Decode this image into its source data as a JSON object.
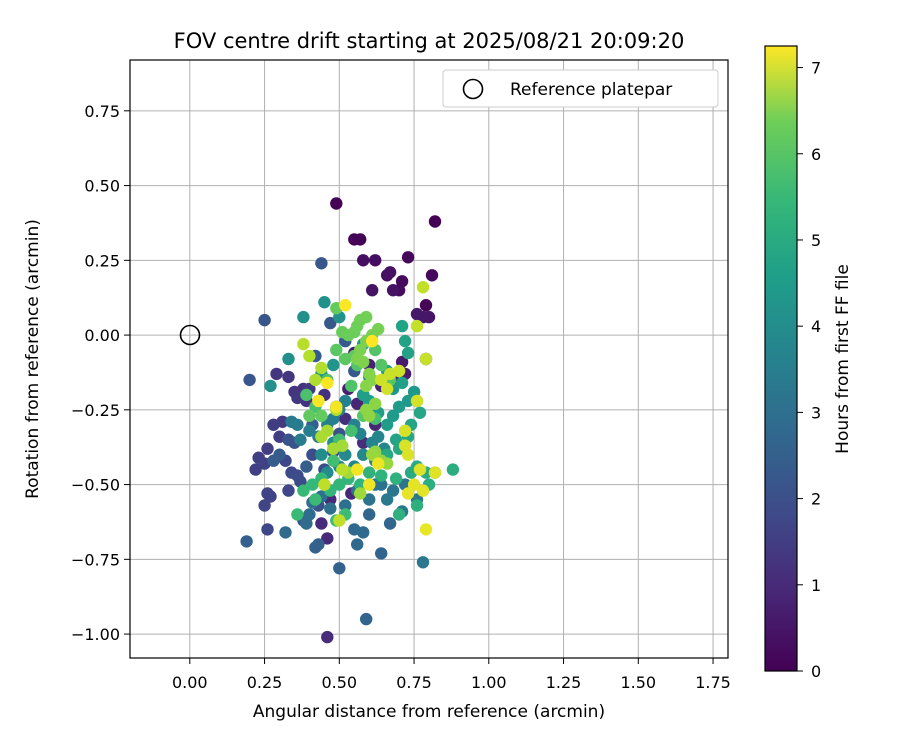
{
  "chart_data": {
    "type": "scatter",
    "title": "FOV centre drift starting at 2025/08/21 20:09:20",
    "xlabel": "Angular distance from reference (arcmin)",
    "ylabel": "Rotation from reference (arcmin)",
    "xlim": [
      -0.2,
      1.8
    ],
    "ylim": [
      -1.08,
      0.92
    ],
    "x_ticks": [
      "0.00",
      "0.25",
      "0.50",
      "0.75",
      "1.00",
      "1.25",
      "1.50",
      "1.75"
    ],
    "y_ticks": [
      "0.75",
      "0.50",
      "0.25",
      "0.00",
      "−0.25",
      "−0.50",
      "−0.75",
      "−1.00"
    ],
    "grid": true,
    "legend": {
      "position": "top-right",
      "entries": [
        "Reference platepar"
      ]
    },
    "reference_point": {
      "x": 0.0,
      "y": 0.0,
      "label": "Reference platepar"
    },
    "colorbar": {
      "label": "Hours from first FF file",
      "colormap": "viridis",
      "range": [
        0,
        7.25
      ],
      "ticks": [
        "0",
        "1",
        "2",
        "3",
        "4",
        "5",
        "6",
        "7"
      ]
    },
    "point_color_scale": {
      "low": "#440154",
      "high": "#fde725"
    },
    "series": [
      {
        "values": [
          [
            0.82,
            0.38
          ],
          [
            0.49,
            0.44
          ],
          [
            0.57,
            0.32
          ],
          [
            0.55,
            0.32
          ],
          [
            0.79,
            0.1
          ],
          [
            0.81,
            0.2
          ],
          [
            0.73,
            0.26
          ],
          [
            0.71,
            0.18
          ],
          [
            0.7,
            0.15
          ],
          [
            0.62,
            0.25
          ],
          [
            0.58,
            0.25
          ],
          [
            0.66,
            0.2
          ],
          [
            0.67,
            0.21
          ],
          [
            0.68,
            0.15
          ],
          [
            0.61,
            0.15
          ],
          [
            0.8,
            0.06
          ],
          [
            0.78,
            0.06
          ],
          [
            0.76,
            0.07
          ],
          [
            0.79,
            -0.08
          ],
          [
            0.71,
            -0.09
          ],
          [
            0.72,
            -0.13
          ],
          [
            0.68,
            -0.15
          ],
          [
            0.55,
            -0.06
          ],
          [
            0.53,
            -0.18
          ],
          [
            0.6,
            -0.1
          ],
          [
            0.64,
            -0.17
          ],
          [
            0.58,
            -0.2
          ],
          [
            0.56,
            -0.23
          ],
          [
            0.62,
            -0.3
          ],
          [
            0.47,
            -0.55
          ],
          [
            0.54,
            -0.53
          ],
          [
            0.44,
            -0.63
          ],
          [
            0.46,
            -0.68
          ],
          [
            0.46,
            -1.01
          ],
          [
            0.58,
            -0.36
          ],
          [
            0.52,
            -0.28
          ],
          [
            0.49,
            -0.24
          ],
          [
            0.45,
            -0.2
          ],
          [
            0.38,
            -0.18
          ],
          [
            0.39,
            -0.22
          ],
          [
            0.35,
            -0.19
          ],
          [
            0.33,
            -0.14
          ],
          [
            0.29,
            -0.13
          ],
          [
            0.36,
            -0.21
          ],
          [
            0.4,
            -0.18
          ],
          [
            0.31,
            -0.29
          ],
          [
            0.3,
            -0.34
          ],
          [
            0.28,
            -0.3
          ],
          [
            0.26,
            -0.38
          ],
          [
            0.23,
            -0.41
          ],
          [
            0.22,
            -0.45
          ],
          [
            0.25,
            -0.43
          ],
          [
            0.26,
            -0.53
          ],
          [
            0.27,
            -0.54
          ],
          [
            0.25,
            -0.57
          ],
          [
            0.26,
            -0.65
          ],
          [
            0.33,
            -0.52
          ],
          [
            0.32,
            -0.42
          ],
          [
            0.34,
            -0.46
          ],
          [
            0.36,
            -0.47
          ],
          [
            0.37,
            -0.49
          ],
          [
            0.41,
            -0.4
          ],
          [
            0.45,
            -0.45
          ],
          [
            0.48,
            -0.39
          ],
          [
            0.5,
            -0.33
          ],
          [
            0.43,
            -0.57
          ],
          [
            0.38,
            -0.62
          ],
          [
            0.35,
            -0.36
          ],
          [
            0.33,
            -0.35
          ],
          [
            0.2,
            -0.15
          ],
          [
            0.25,
            0.05
          ],
          [
            0.44,
            0.24
          ],
          [
            0.47,
            0.04
          ],
          [
            0.52,
            -0.02
          ],
          [
            0.55,
            -0.12
          ],
          [
            0.42,
            -0.07
          ],
          [
            0.3,
            -0.4
          ],
          [
            0.28,
            -0.42
          ],
          [
            0.39,
            -0.44
          ],
          [
            0.41,
            -0.3
          ],
          [
            0.19,
            -0.69
          ],
          [
            0.43,
            -0.7
          ],
          [
            0.42,
            -0.71
          ],
          [
            0.5,
            -0.78
          ],
          [
            0.59,
            -0.95
          ],
          [
            0.64,
            -0.73
          ],
          [
            0.67,
            -0.63
          ],
          [
            0.6,
            -0.6
          ],
          [
            0.55,
            -0.65
          ],
          [
            0.56,
            -0.7
          ],
          [
            0.58,
            -0.66
          ],
          [
            0.32,
            -0.66
          ],
          [
            0.39,
            -0.63
          ],
          [
            0.4,
            -0.6
          ],
          [
            0.41,
            -0.56
          ],
          [
            0.44,
            -0.54
          ],
          [
            0.47,
            -0.58
          ],
          [
            0.52,
            -0.57
          ],
          [
            0.56,
            -0.52
          ],
          [
            0.6,
            -0.55
          ],
          [
            0.62,
            -0.5
          ],
          [
            0.64,
            -0.5
          ],
          [
            0.68,
            -0.52
          ],
          [
            0.72,
            -0.5
          ],
          [
            0.76,
            -0.55
          ],
          [
            0.78,
            -0.76
          ],
          [
            0.71,
            -0.59
          ],
          [
            0.66,
            -0.55
          ],
          [
            0.34,
            -0.29
          ],
          [
            0.36,
            -0.3
          ],
          [
            0.37,
            -0.35
          ],
          [
            0.4,
            -0.32
          ],
          [
            0.43,
            -0.34
          ],
          [
            0.46,
            -0.3
          ],
          [
            0.48,
            -0.28
          ],
          [
            0.5,
            -0.25
          ],
          [
            0.52,
            -0.22
          ],
          [
            0.55,
            -0.3
          ],
          [
            0.57,
            -0.33
          ],
          [
            0.61,
            -0.36
          ],
          [
            0.63,
            -0.34
          ],
          [
            0.65,
            -0.38
          ],
          [
            0.62,
            -0.42
          ],
          [
            0.58,
            -0.4
          ],
          [
            0.55,
            -0.44
          ],
          [
            0.52,
            -0.4
          ],
          [
            0.5,
            -0.44
          ],
          [
            0.46,
            -0.46
          ],
          [
            0.44,
            -0.4
          ],
          [
            0.48,
            -0.36
          ],
          [
            0.33,
            -0.08
          ],
          [
            0.27,
            -0.17
          ],
          [
            0.38,
            0.06
          ],
          [
            0.45,
            0.11
          ],
          [
            0.5,
            0.06
          ],
          [
            0.44,
            -0.13
          ],
          [
            0.48,
            -0.1
          ],
          [
            0.58,
            -0.03
          ],
          [
            0.6,
            -0.14
          ],
          [
            0.68,
            -0.18
          ],
          [
            0.73,
            -0.22
          ],
          [
            0.75,
            -0.19
          ],
          [
            0.7,
            -0.24
          ],
          [
            0.68,
            -0.27
          ],
          [
            0.66,
            -0.3
          ],
          [
            0.63,
            -0.26
          ],
          [
            0.6,
            -0.22
          ],
          [
            0.58,
            -0.2
          ],
          [
            0.66,
            -0.12
          ],
          [
            0.71,
            -0.16
          ],
          [
            0.73,
            -0.06
          ],
          [
            0.72,
            -0.02
          ],
          [
            0.71,
            0.03
          ],
          [
            0.69,
            -0.35
          ],
          [
            0.74,
            -0.3
          ],
          [
            0.77,
            -0.26
          ],
          [
            0.76,
            -0.22
          ],
          [
            0.73,
            -0.34
          ],
          [
            0.7,
            -0.38
          ],
          [
            0.66,
            -0.4
          ],
          [
            0.74,
            -0.46
          ],
          [
            0.76,
            -0.44
          ],
          [
            0.79,
            -0.46
          ],
          [
            0.82,
            -0.46
          ],
          [
            0.88,
            -0.45
          ],
          [
            0.8,
            -0.5
          ],
          [
            0.76,
            -0.57
          ],
          [
            0.7,
            -0.6
          ],
          [
            0.69,
            -0.48
          ],
          [
            0.64,
            -0.47
          ],
          [
            0.6,
            -0.46
          ],
          [
            0.57,
            -0.5
          ],
          [
            0.53,
            -0.48
          ],
          [
            0.5,
            -0.5
          ],
          [
            0.47,
            -0.52
          ],
          [
            0.44,
            -0.48
          ],
          [
            0.41,
            -0.5
          ],
          [
            0.38,
            -0.52
          ],
          [
            0.36,
            -0.6
          ],
          [
            0.42,
            -0.55
          ],
          [
            0.52,
            -0.6
          ],
          [
            0.49,
            -0.62
          ],
          [
            0.48,
            -0.42
          ],
          [
            0.5,
            -0.35
          ],
          [
            0.54,
            -0.32
          ],
          [
            0.62,
            -0.28
          ],
          [
            0.42,
            -0.24
          ],
          [
            0.39,
            -0.2
          ],
          [
            0.46,
            -0.15
          ],
          [
            0.54,
            -0.17
          ],
          [
            0.56,
            -0.1
          ],
          [
            0.62,
            -0.05
          ],
          [
            0.64,
            -0.1
          ],
          [
            0.67,
            -0.15
          ],
          [
            0.58,
            -0.27
          ],
          [
            0.49,
            -0.05
          ],
          [
            0.52,
            -0.08
          ],
          [
            0.55,
            -0.07
          ],
          [
            0.4,
            -0.27
          ],
          [
            0.44,
            -0.27
          ],
          [
            0.49,
            0.09
          ],
          [
            0.51,
            0.01
          ],
          [
            0.53,
            0.0
          ],
          [
            0.55,
            0.01
          ],
          [
            0.56,
            0.03
          ],
          [
            0.57,
            0.05
          ],
          [
            0.59,
            0.06
          ],
          [
            0.61,
            0.0
          ],
          [
            0.63,
            0.02
          ],
          [
            0.59,
            -0.02
          ],
          [
            0.57,
            -0.05
          ],
          [
            0.56,
            -0.08
          ],
          [
            0.58,
            -0.09
          ],
          [
            0.6,
            -0.13
          ],
          [
            0.61,
            -0.15
          ],
          [
            0.59,
            -0.17
          ],
          [
            0.62,
            -0.23
          ],
          [
            0.59,
            -0.25
          ],
          [
            0.6,
            -0.27
          ],
          [
            0.62,
            -0.39
          ],
          [
            0.64,
            -0.42
          ],
          [
            0.66,
            -0.43
          ],
          [
            0.61,
            -0.4
          ],
          [
            0.6,
            -0.5
          ],
          [
            0.57,
            -0.53
          ],
          [
            0.53,
            -0.46
          ],
          [
            0.51,
            -0.37
          ],
          [
            0.48,
            -0.38
          ],
          [
            0.46,
            -0.32
          ],
          [
            0.44,
            -0.34
          ],
          [
            0.43,
            -0.22
          ],
          [
            0.42,
            -0.15
          ],
          [
            0.44,
            -0.11
          ],
          [
            0.4,
            -0.07
          ],
          [
            0.38,
            -0.03
          ],
          [
            0.49,
            -0.25
          ],
          [
            0.51,
            -0.45
          ],
          [
            0.45,
            -0.5
          ],
          [
            0.5,
            -0.62
          ],
          [
            0.78,
            0.16
          ],
          [
            0.76,
            0.03
          ],
          [
            0.79,
            -0.08
          ],
          [
            0.67,
            -0.13
          ],
          [
            0.7,
            -0.12
          ],
          [
            0.64,
            -0.15
          ],
          [
            0.66,
            -0.18
          ],
          [
            0.76,
            -0.22
          ],
          [
            0.72,
            -0.32
          ],
          [
            0.72,
            -0.37
          ],
          [
            0.73,
            -0.4
          ],
          [
            0.77,
            -0.45
          ],
          [
            0.82,
            -0.46
          ],
          [
            0.78,
            -0.52
          ],
          [
            0.75,
            -0.5
          ],
          [
            0.73,
            -0.53
          ],
          [
            0.79,
            -0.65
          ],
          [
            0.63,
            -0.43
          ],
          [
            0.6,
            -0.5
          ],
          [
            0.56,
            -0.45
          ],
          [
            0.49,
            -0.24
          ],
          [
            0.43,
            -0.22
          ],
          [
            0.46,
            -0.16
          ],
          [
            0.52,
            0.1
          ],
          [
            0.61,
            -0.02
          ]
        ]
      }
    ]
  }
}
